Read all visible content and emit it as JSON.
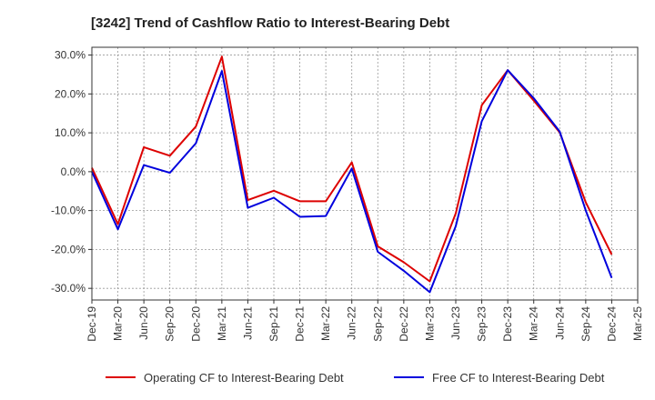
{
  "chart_data": {
    "type": "line",
    "title": "[3242]  Trend of Cashflow Ratio to Interest-Bearing Debt",
    "xlabel": "",
    "ylabel": "",
    "categories": [
      "Dec-19",
      "Mar-20",
      "Jun-20",
      "Sep-20",
      "Dec-20",
      "Mar-21",
      "Jun-21",
      "Sep-21",
      "Dec-21",
      "Mar-22",
      "Jun-22",
      "Sep-22",
      "Dec-22",
      "Mar-23",
      "Jun-23",
      "Sep-23",
      "Dec-23",
      "Mar-24",
      "Jun-24",
      "Sep-24",
      "Dec-24",
      "Mar-25"
    ],
    "y_ticks": [
      "30.0%",
      "20.0%",
      "10.0%",
      "0.0%",
      "-10.0%",
      "-20.0%",
      "-30.0%"
    ],
    "y_tick_values": [
      30,
      20,
      10,
      0,
      -10,
      -20,
      -30
    ],
    "ylim": [
      -33,
      32
    ],
    "grid": true,
    "legend_position": "bottom",
    "series": [
      {
        "name": "Operating CF to Interest-Bearing Debt",
        "color": "#dd0000",
        "values": [
          1.0,
          -13.5,
          6.3,
          4.1,
          11.6,
          29.6,
          -7.3,
          -4.9,
          -7.6,
          -7.6,
          2.4,
          -19.2,
          -23.3,
          -28.2,
          -10.7,
          17.1,
          26.1,
          18.3,
          10.1,
          -7.9,
          -21.3,
          null
        ]
      },
      {
        "name": "Free CF to Interest-Bearing Debt",
        "color": "#0000dd",
        "values": [
          0.0,
          -14.8,
          1.7,
          -0.3,
          7.3,
          25.9,
          -9.3,
          -6.7,
          -11.6,
          -11.4,
          0.8,
          -20.6,
          -25.5,
          -31.0,
          -14.0,
          13.0,
          26.1,
          18.9,
          10.3,
          -10.0,
          -27.3,
          null
        ]
      }
    ]
  }
}
